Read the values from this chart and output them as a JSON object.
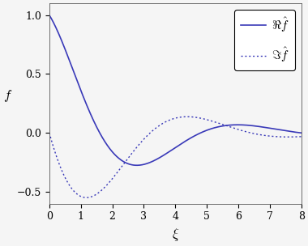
{
  "xlim": [
    0,
    8
  ],
  "ylim": [
    -0.6,
    1.1
  ],
  "xticks": [
    0,
    1,
    2,
    3,
    4,
    5,
    6,
    7,
    8
  ],
  "yticks": [
    -0.5,
    0,
    0.5,
    1
  ],
  "xlabel": "$\\xi$",
  "ylabel": "$f$",
  "line_color": "#3939b8",
  "legend_real": "$\\Re\\hat{f}$",
  "legend_imag": "$\\Im\\hat{f}$",
  "background_color": "#f5f5f5",
  "figsize": [
    3.8,
    3.04
  ],
  "dpi": 100,
  "decay_a": 0.45,
  "osc_b": 0.95,
  "decay_a2": 0.3,
  "osc_b2": 0.55
}
